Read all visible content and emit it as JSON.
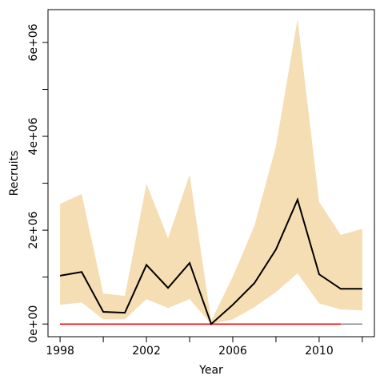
{
  "chart_data": {
    "type": "line",
    "xlabel": "Year",
    "ylabel": "Recruits",
    "x": [
      1998,
      1999,
      2000,
      2001,
      2002,
      2003,
      2004,
      2005,
      2006,
      2007,
      2008,
      2009,
      2010,
      2011,
      2012
    ],
    "band": {
      "color": "#f5deb3",
      "upper": [
        2560000,
        2770000,
        650000,
        600000,
        2990000,
        1830000,
        3180000,
        70000,
        1010000,
        2090000,
        3790000,
        6500000,
        2600000,
        1900000,
        2030000
      ],
      "lower": [
        410000,
        460000,
        100000,
        100000,
        530000,
        340000,
        530000,
        0,
        100000,
        360000,
        680000,
        1080000,
        440000,
        310000,
        290000
      ]
    },
    "series": [
      {
        "color": "#888888",
        "values": [
          0,
          0,
          0,
          0,
          0,
          0,
          0,
          0,
          0,
          0,
          0,
          0,
          0,
          0,
          0
        ]
      },
      {
        "color": "#ff0000",
        "values": [
          0,
          0,
          0,
          0,
          0,
          0,
          0,
          0,
          0,
          0,
          0,
          0,
          0,
          0,
          null
        ]
      },
      {
        "color": "#000000",
        "values": [
          1030000,
          1110000,
          260000,
          240000,
          1260000,
          770000,
          1300000,
          0,
          410000,
          870000,
          1590000,
          2650000,
          1060000,
          750000,
          750000
        ]
      }
    ],
    "xlim": [
      1997.44,
      2012.56
    ],
    "xticks": [
      1998,
      2002,
      2006,
      2010
    ],
    "xminorticks": [
      2000,
      2004,
      2008,
      2012
    ],
    "ylim": [
      -270000,
      6700000
    ],
    "yticks": [
      {
        "value": 0,
        "label": "0e+00"
      },
      {
        "value": 2000000,
        "label": "2e+06"
      },
      {
        "value": 4000000,
        "label": "4e+06"
      },
      {
        "value": 6000000,
        "label": "6e+06"
      }
    ],
    "yminorticks": [
      1000000,
      3000000,
      5000000
    ]
  }
}
